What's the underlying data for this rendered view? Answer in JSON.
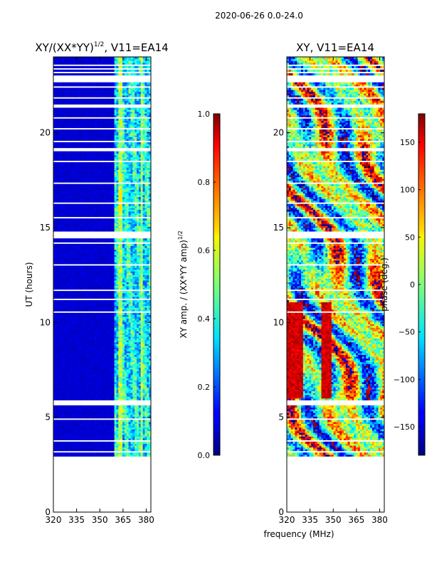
{
  "suptitle": "2020-06-26 0.0-24.0",
  "chart_data": [
    {
      "type": "heatmap",
      "title": "XY/(XX*YY)^1/2, V11=EA14",
      "title_main": "XY/(XX*YY)",
      "title_sup": "1/2",
      "title_tail": ", V11=EA14",
      "xlabel": "",
      "ylabel": "UT (hours)",
      "xlim": [
        320,
        383
      ],
      "ylim": [
        0,
        24
      ],
      "xticks": [
        320,
        335,
        350,
        365,
        380
      ],
      "xtick_labels": [
        "320",
        "335",
        "350",
        "365",
        "380"
      ],
      "yticks": [
        0,
        5,
        10,
        15,
        20
      ],
      "ytick_labels": [
        "0",
        "5",
        "10",
        "15",
        "20"
      ],
      "data_time_range": [
        2.95,
        24.0
      ],
      "colorbar": {
        "label": "XY amp. / (XX*YY amp)^1/2",
        "label_main": "XY amp. / (XX*YY amp)",
        "label_sup": "1/2",
        "range": [
          0.0,
          1.0
        ],
        "ticks": [
          0.0,
          0.2,
          0.4,
          0.6,
          0.8,
          1.0
        ],
        "tick_labels": [
          "0.0",
          "0.2",
          "0.4",
          "0.6",
          "0.8",
          "1.0"
        ]
      }
    },
    {
      "type": "heatmap",
      "title": "XY, V11=EA14",
      "xlabel": "frequency (MHz)",
      "ylabel": "",
      "xlim": [
        320,
        383
      ],
      "ylim": [
        0,
        24
      ],
      "xticks": [
        320,
        335,
        350,
        365,
        380
      ],
      "xtick_labels": [
        "320",
        "335",
        "350",
        "365",
        "380"
      ],
      "yticks": [
        0,
        5,
        10,
        15,
        20
      ],
      "ytick_labels": [
        "0",
        "5",
        "10",
        "15",
        "20"
      ],
      "data_time_range": [
        2.95,
        24.0
      ],
      "colorbar": {
        "label": "phase (deg.)",
        "range": [
          -180,
          180
        ],
        "ticks": [
          -150,
          -100,
          -50,
          0,
          50,
          100,
          150
        ],
        "tick_labels": [
          "−150",
          "−100",
          "−50",
          "0",
          "50",
          "100",
          "150"
        ]
      }
    }
  ]
}
